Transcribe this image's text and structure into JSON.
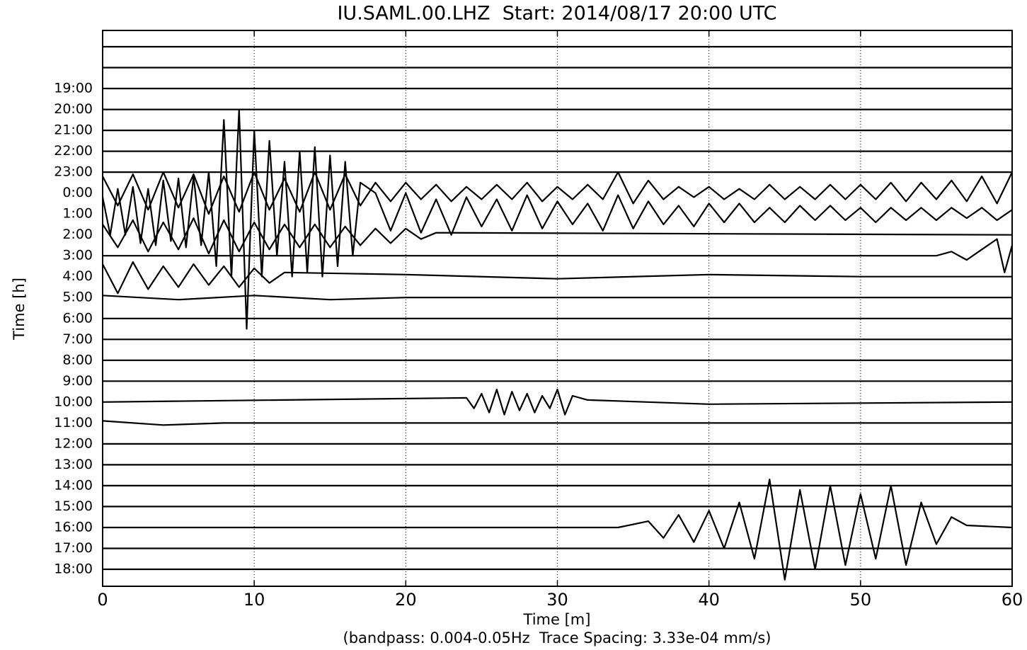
{
  "chart_data": {
    "type": "dayplot",
    "title": "IU.SAML.00.LHZ  Start: 2014/08/17 20:00 UTC",
    "x_label": "Time [m]",
    "y_label": "Time [h]",
    "note": "(bandpass: 0.004-0.05Hz  Trace Spacing: 3.33e-04 mm/s)",
    "xlim": [
      0,
      60
    ],
    "xticks": [
      0,
      10,
      20,
      30,
      40,
      50,
      60
    ],
    "grid": true,
    "color": "#000000",
    "categories": [
      null,
      null,
      "19:00",
      "20:00",
      "21:00",
      "22:00",
      "23:00",
      "0:00",
      "1:00",
      "2:00",
      "3:00",
      "4:00",
      "5:00",
      "6:00",
      "7:00",
      "8:00",
      "9:00",
      "10:00",
      "11:00",
      "12:00",
      "13:00",
      "14:00",
      "15:00",
      "16:00",
      "17:00",
      "18:00"
    ],
    "series": [
      {
        "x": [
          0,
          60
        ],
        "values": [
          0,
          0
        ]
      },
      {
        "x": [
          0,
          60
        ],
        "values": [
          0,
          0
        ]
      },
      {
        "x": [
          0,
          60
        ],
        "values": [
          0,
          0
        ]
      },
      {
        "x": [
          0,
          60
        ],
        "values": [
          0,
          0
        ]
      },
      {
        "x": [
          0,
          60
        ],
        "values": [
          0,
          0
        ]
      },
      {
        "x": [
          0,
          60
        ],
        "values": [
          0,
          0
        ]
      },
      {
        "x": [
          0,
          60
        ],
        "values": [
          0,
          0
        ]
      },
      {
        "x": [
          0,
          1,
          2,
          3,
          4,
          5,
          6,
          7,
          8,
          9,
          10,
          11,
          12,
          13,
          14,
          15,
          16,
          17,
          18,
          19,
          20,
          21,
          22,
          23,
          24,
          25,
          26,
          27,
          28,
          29,
          30,
          31,
          32,
          33,
          34,
          35,
          36,
          37,
          38,
          39,
          40,
          41,
          42,
          43,
          44,
          45,
          46,
          47,
          48,
          49,
          50,
          51,
          52,
          53,
          54,
          55,
          56,
          57,
          58,
          59,
          60
        ],
        "values": [
          0.8,
          -0.6,
          0.9,
          -0.8,
          1,
          -0.7,
          0.9,
          -1,
          0.8,
          -0.9,
          1,
          -0.8,
          0.7,
          -0.9,
          1,
          -0.8,
          0.9,
          -0.6,
          0.5,
          -0.4,
          0.5,
          -0.3,
          0.4,
          -0.4,
          0.3,
          -0.3,
          0.4,
          -0.3,
          0.5,
          -0.4,
          0.3,
          -0.3,
          0.4,
          -0.3,
          1.0,
          -0.5,
          0.6,
          -0.3,
          0.3,
          -0.2,
          0.3,
          -0.3,
          0.2,
          -0.3,
          0.4,
          -0.3,
          0.3,
          -0.3,
          0.4,
          -0.3,
          0.4,
          -0.3,
          0.5,
          -0.4,
          0.5,
          -0.3,
          0.6,
          -0.4,
          0.8,
          -0.5,
          1.0
        ]
      },
      {
        "x": [
          0,
          0.5,
          1,
          1.5,
          2,
          2.5,
          3,
          3.5,
          4,
          4.5,
          5,
          5.5,
          6,
          6.5,
          7,
          7.5,
          8,
          8.5,
          9,
          9.5,
          10,
          10.5,
          11,
          11.5,
          12,
          12.5,
          13,
          13.5,
          14,
          14.5,
          15,
          15.5,
          16,
          16.5,
          17,
          18,
          19,
          20,
          21,
          22,
          23,
          24,
          25,
          26,
          27,
          28,
          29,
          30,
          31,
          32,
          33,
          34,
          35,
          36,
          37,
          38,
          39,
          40,
          41,
          42,
          43,
          44,
          45,
          46,
          47,
          48,
          49,
          50,
          51,
          52,
          53,
          54,
          55,
          56,
          57,
          58,
          59,
          60
        ],
        "values": [
          0.8,
          -1,
          1.2,
          -1,
          1.3,
          -1.4,
          1.2,
          -1.5,
          1.6,
          -1.3,
          1.7,
          -1.6,
          1.8,
          -1.5,
          2,
          -2.5,
          4.5,
          -3,
          5,
          -5.5,
          4,
          -3,
          3.5,
          -2,
          2.5,
          -3,
          3,
          -2.8,
          3.2,
          -3,
          2.8,
          -2.5,
          2.5,
          -2,
          1.5,
          1,
          -0.8,
          1,
          -0.9,
          0.7,
          -1,
          0.8,
          -0.6,
          0.7,
          -0.8,
          0.9,
          -0.7,
          0.6,
          -0.5,
          0.5,
          -0.8,
          0.9,
          -0.7,
          0.6,
          -0.5,
          0.4,
          -0.6,
          0.5,
          -0.4,
          0.5,
          -0.4,
          0.3,
          -0.4,
          0.4,
          -0.3,
          0.4,
          -0.3,
          0.3,
          -0.4,
          0.3,
          -0.3,
          0.3,
          -0.3,
          0.3,
          -0.2,
          0.3,
          -0.3,
          0.2
        ]
      },
      {
        "x": [
          0,
          1,
          2,
          3,
          4,
          5,
          6,
          7,
          8,
          9,
          10,
          11,
          12,
          13,
          14,
          15,
          16,
          17,
          18,
          19,
          20,
          21,
          22,
          60
        ],
        "values": [
          0.5,
          -0.6,
          0.7,
          -0.8,
          0.6,
          -0.7,
          0.8,
          -0.9,
          0.7,
          -0.8,
          0.6,
          -0.7,
          0.5,
          -0.6,
          0.5,
          -0.6,
          0.4,
          -0.5,
          0.3,
          -0.4,
          0.3,
          -0.2,
          0.1,
          0
        ]
      },
      {
        "x": [
          0,
          55,
          56,
          57,
          58,
          59,
          59.5,
          60
        ],
        "values": [
          0,
          0,
          0.2,
          -0.2,
          0.3,
          0.8,
          -0.8,
          0.5
        ]
      },
      {
        "x": [
          0,
          1,
          2,
          3,
          4,
          5,
          6,
          7,
          8,
          9,
          10,
          11,
          12,
          20,
          30,
          40,
          50,
          60
        ],
        "values": [
          0.6,
          -0.8,
          0.7,
          -0.6,
          0.5,
          -0.5,
          0.6,
          -0.4,
          0.5,
          -0.5,
          0.4,
          -0.3,
          0.2,
          0.1,
          -0.1,
          0.1,
          0,
          0
        ]
      },
      {
        "x": [
          0,
          5,
          10,
          15,
          20,
          60
        ],
        "values": [
          0.1,
          -0.1,
          0.1,
          -0.1,
          0,
          0
        ]
      },
      {
        "x": [
          0,
          60
        ],
        "values": [
          0,
          0
        ]
      },
      {
        "x": [
          0,
          60
        ],
        "values": [
          0,
          0
        ]
      },
      {
        "x": [
          0,
          60
        ],
        "values": [
          0,
          0
        ]
      },
      {
        "x": [
          0,
          60
        ],
        "values": [
          0,
          0
        ]
      },
      {
        "x": [
          0,
          24,
          24.5,
          25,
          25.5,
          26,
          26.5,
          27,
          27.5,
          28,
          28.5,
          29,
          29.5,
          30,
          30.5,
          31,
          32,
          40,
          60
        ],
        "values": [
          0,
          0.2,
          -0.3,
          0.4,
          -0.5,
          0.6,
          -0.6,
          0.5,
          -0.4,
          0.4,
          -0.5,
          0.3,
          -0.3,
          0.6,
          -0.6,
          0.3,
          0.1,
          -0.1,
          0
        ]
      },
      {
        "x": [
          0,
          4,
          8,
          60
        ],
        "values": [
          0.1,
          -0.1,
          0,
          0
        ]
      },
      {
        "x": [
          0,
          60
        ],
        "values": [
          0,
          0
        ]
      },
      {
        "x": [
          0,
          60
        ],
        "values": [
          0,
          0
        ]
      },
      {
        "x": [
          0,
          60
        ],
        "values": [
          0,
          0
        ]
      },
      {
        "x": [
          0,
          60
        ],
        "values": [
          0,
          0
        ]
      },
      {
        "x": [
          0,
          34,
          36,
          37,
          38,
          39,
          40,
          41,
          42,
          43,
          44,
          45,
          46,
          47,
          48,
          49,
          50,
          51,
          52,
          53,
          54,
          55,
          56,
          57,
          60
        ],
        "values": [
          0,
          0,
          0.3,
          -0.5,
          0.6,
          -0.7,
          0.8,
          -1,
          1.2,
          -1.5,
          2.3,
          -2.5,
          1.8,
          -2,
          2,
          -1.8,
          1.6,
          -1.5,
          2,
          -1.8,
          1.2,
          -0.8,
          0.5,
          0.1,
          0
        ]
      },
      {
        "x": [
          0,
          60
        ],
        "values": [
          0,
          0
        ]
      },
      {
        "x": [
          0,
          60
        ],
        "values": [
          0,
          0
        ]
      }
    ]
  }
}
